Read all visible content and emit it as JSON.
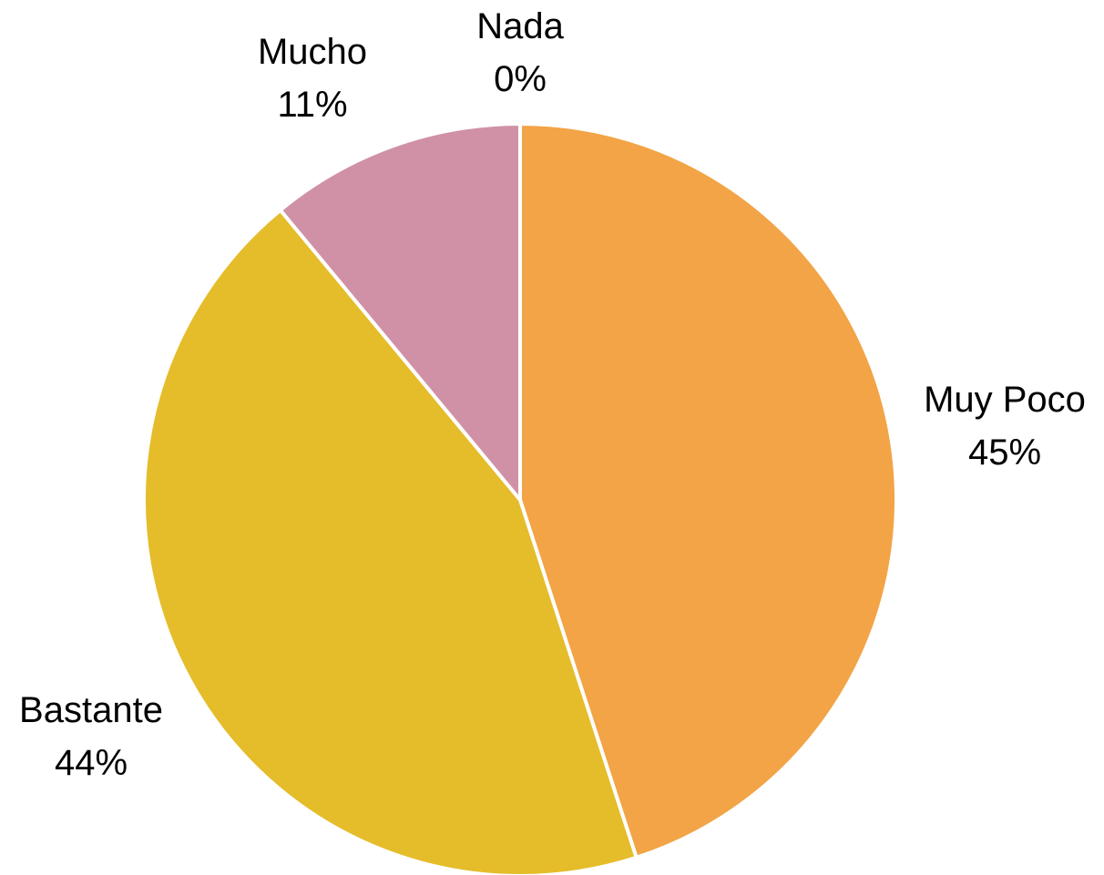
{
  "chart_data": {
    "type": "pie",
    "categories": [
      "Muy Poco",
      "Bastante",
      "Mucho",
      "Nada"
    ],
    "values": [
      45,
      44,
      11,
      0
    ],
    "value_labels": [
      "45%",
      "44%",
      "11%",
      "0%"
    ],
    "start_angle_deg": 0,
    "direction": "clockwise",
    "colors": [
      "#F2A446",
      "#E5BC2A",
      "#D091A6",
      "#8FB2D6"
    ],
    "legend": "none",
    "title": ""
  }
}
